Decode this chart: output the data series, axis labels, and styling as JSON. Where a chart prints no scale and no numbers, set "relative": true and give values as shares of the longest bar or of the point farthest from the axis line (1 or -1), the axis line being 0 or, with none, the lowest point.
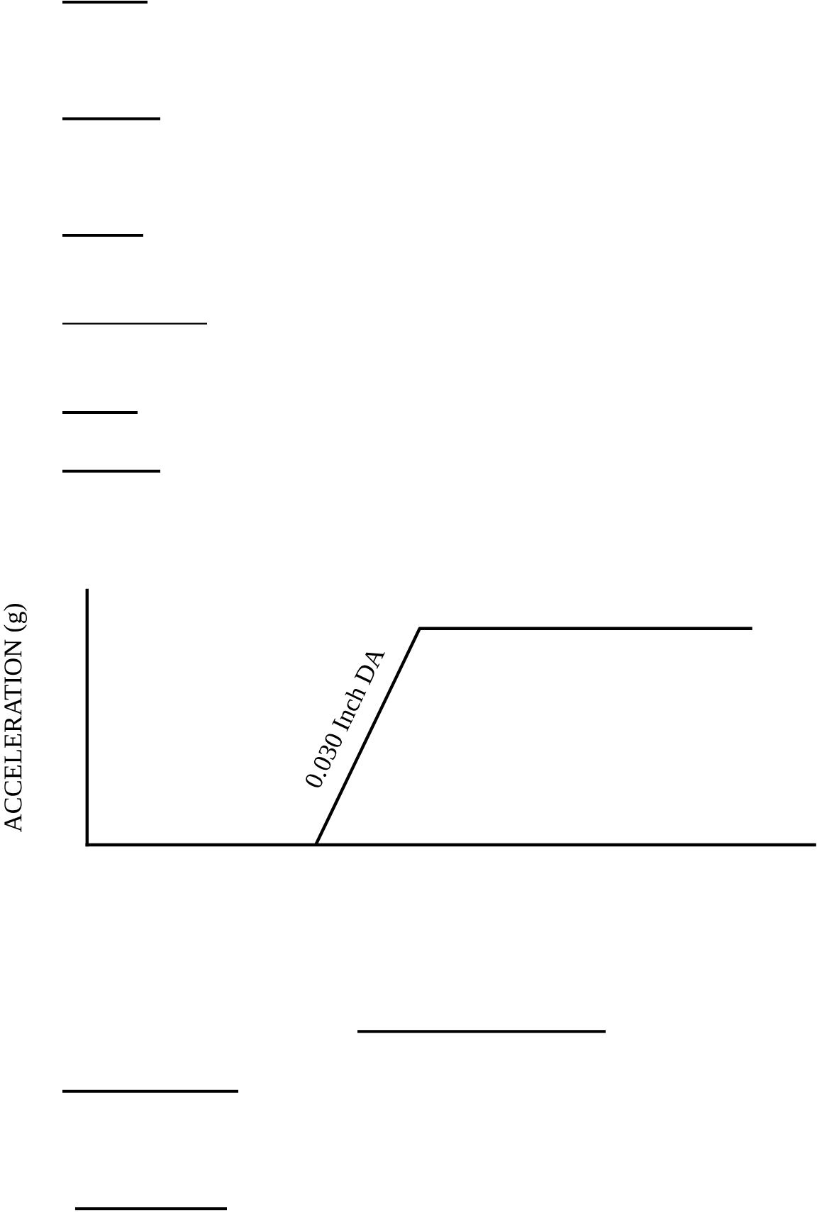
{
  "chart_data": {
    "type": "line",
    "ylabel": "ACCELERATION (g)",
    "relative": true,
    "categories": [
      null,
      null,
      null,
      null,
      null,
      null,
      null,
      null,
      null,
      null,
      null,
      null,
      null,
      null,
      null,
      null,
      null,
      null,
      null,
      null,
      null,
      null,
      null,
      null,
      null,
      null,
      null,
      null,
      null,
      null,
      null,
      null,
      null,
      null,
      null,
      null
    ],
    "values": [
      null,
      null,
      null,
      null,
      null,
      null,
      null,
      null,
      null,
      null,
      null,
      0,
      0.2,
      0.4,
      0.6,
      0.8,
      1,
      1,
      1,
      1,
      1,
      1,
      1,
      1,
      1,
      1,
      1,
      1,
      1,
      1,
      1,
      1,
      1,
      null,
      null,
      null
    ],
    "color": "#000000",
    "annotations": [
      "0.030 Inch DA"
    ],
    "line_style": "solid"
  }
}
